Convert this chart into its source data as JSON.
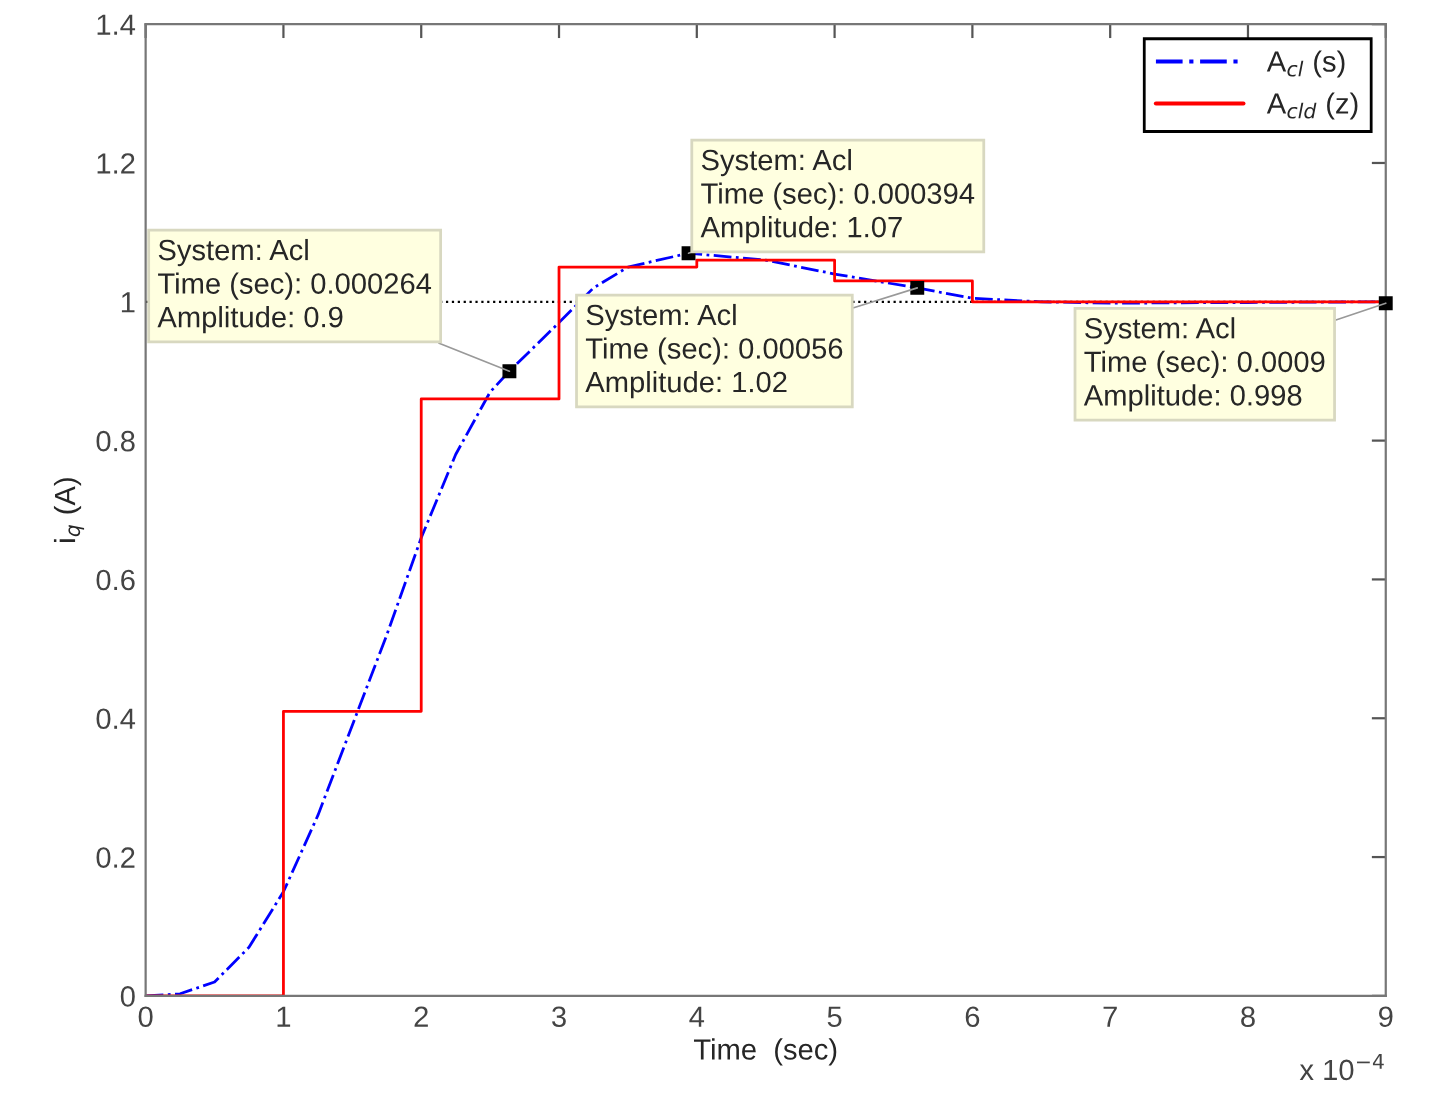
{
  "chart_data": {
    "type": "line",
    "xlabel": "Time  (sec)",
    "ylabel": "i$_{q}$ (A)",
    "xlim": [
      0,
      9
    ],
    "xticks": [
      0,
      1,
      2,
      3,
      4,
      5,
      6,
      7,
      8,
      9
    ],
    "ylim": [
      0,
      1.4
    ],
    "yticks": [
      0,
      0.2,
      0.4,
      0.6,
      0.8,
      1,
      1.2,
      1.4
    ],
    "grid": false,
    "legend": "top right",
    "ref_lines": [
      {
        "axis": "y",
        "value": 1,
        "color": "#000000",
        "line_style": "dotted"
      }
    ],
    "series": [
      {
        "name": "A$_{cl}$ (s)",
        "type": "line",
        "color": "#0000ff",
        "line_style": "dashdot",
        "x": [
          0,
          0.25,
          0.5,
          0.75,
          1,
          1.25,
          1.5,
          1.75,
          2,
          2.25,
          2.5,
          2.64,
          3,
          3.25,
          3.5,
          3.94,
          4.5,
          5,
          5.6,
          6,
          6.5,
          7,
          8,
          9
        ],
        "values": [
          0,
          0.003,
          0.02,
          0.07,
          0.15,
          0.26,
          0.39,
          0.52,
          0.66,
          0.78,
          0.87,
          0.9,
          0.97,
          1.02,
          1.05,
          1.07,
          1.06,
          1.04,
          1.02,
          1.005,
          1.0,
          0.998,
          0.999,
          1.0
        ]
      },
      {
        "name": "A$_{cld}$ (z)",
        "type": "step",
        "color": "#ff0000",
        "line_style": "solid",
        "x": [
          0,
          1,
          2,
          3,
          4,
          5,
          6,
          7,
          8,
          9
        ],
        "values": [
          0,
          0.41,
          0.86,
          1.05,
          1.06,
          1.03,
          1.0,
          1.0,
          1.0,
          1.0
        ]
      }
    ],
    "annotations": [
      {
        "text": "System: Acl\nTime (sec): 0.000264\nAmplitude: 0.9",
        "x": 2.64,
        "y": 0.9
      },
      {
        "text": "System: Acl\nTime (sec): 0.000394\nAmplitude: 1.07",
        "x": 3.94,
        "y": 1.07
      },
      {
        "text": "System: Acl\nTime (sec): 0.00056\nAmplitude: 1.02",
        "x": 5.6,
        "y": 1.02
      },
      {
        "text": "System: Acl\nTime (sec): 0.0009\nAmplitude: 0.998",
        "x": 9,
        "y": 0.998
      },
      "x 10$^{−4}$"
    ]
  }
}
